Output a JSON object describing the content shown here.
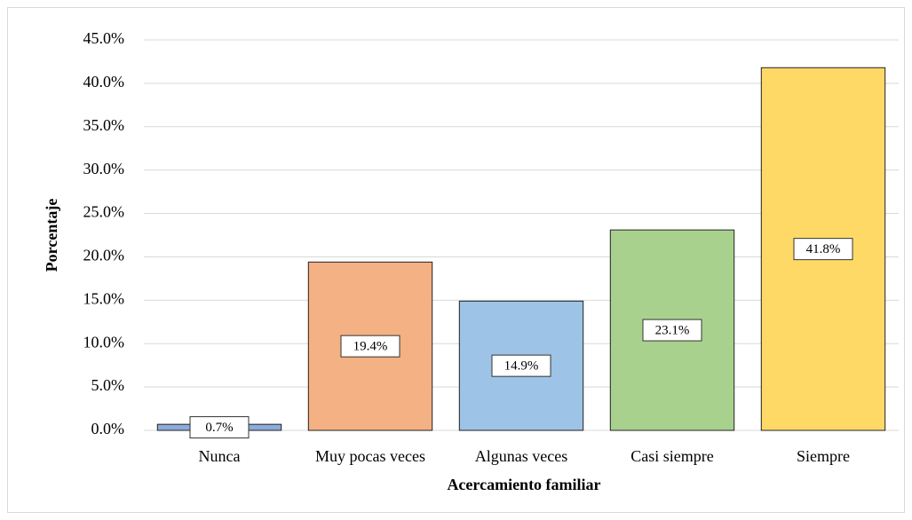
{
  "chart_data": {
    "type": "bar",
    "x_label": "Acercamiento familiar",
    "y_label": "Porcentaje",
    "categories": [
      "Nunca",
      "Muy pocas veces",
      "Algunas veces",
      "Casi siempre",
      "Siempre"
    ],
    "values": [
      0.7,
      19.4,
      14.9,
      23.1,
      41.8
    ],
    "value_labels": [
      "0.7%",
      "19.4%",
      "14.9%",
      "23.1%",
      "41.8%"
    ],
    "colors": [
      "#8eaadb",
      "#f4b183",
      "#9dc3e6",
      "#a9d18e",
      "#ffd966"
    ],
    "ylim": [
      0,
      45
    ],
    "yticks": [
      {
        "value": 0,
        "label": "0.0%"
      },
      {
        "value": 5,
        "label": "5.0%"
      },
      {
        "value": 10,
        "label": "10.0%"
      },
      {
        "value": 15,
        "label": "15.0%"
      },
      {
        "value": 20,
        "label": "20.0%"
      },
      {
        "value": 25,
        "label": "25.0%"
      },
      {
        "value": 30,
        "label": "30.0%"
      },
      {
        "value": 35,
        "label": "35.0%"
      },
      {
        "value": 40,
        "label": "40.0%"
      },
      {
        "value": 45,
        "label": "45.0%"
      }
    ],
    "grid": true
  }
}
